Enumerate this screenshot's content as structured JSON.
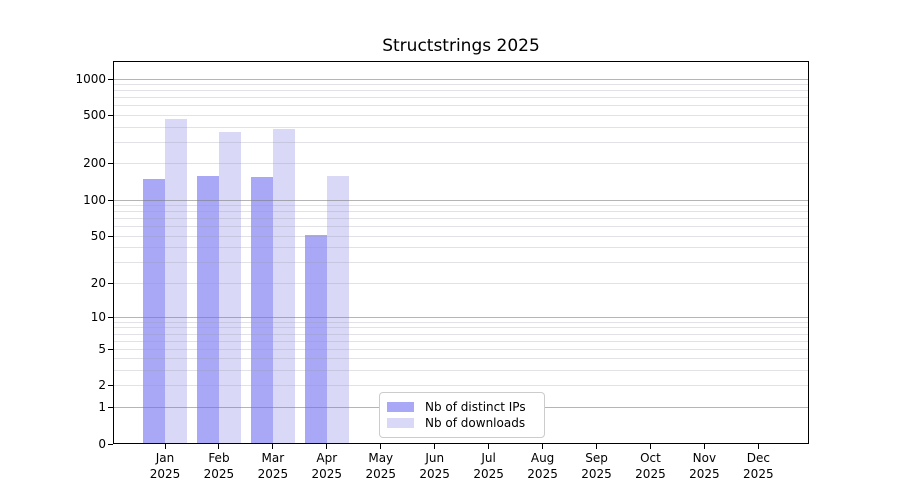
{
  "chart_data": {
    "type": "bar",
    "title": "Structstrings 2025",
    "categories": [
      "Jan",
      "Feb",
      "Mar",
      "Apr",
      "May",
      "Jun",
      "Jul",
      "Aug",
      "Sep",
      "Oct",
      "Nov",
      "Dec"
    ],
    "x_sublabel": "2025",
    "series": [
      {
        "name": "Nb of distinct IPs",
        "color": "#a8a8f7",
        "values": [
          150,
          158,
          156,
          51,
          0,
          0,
          0,
          0,
          0,
          0,
          0,
          0
        ]
      },
      {
        "name": "Nb of downloads",
        "color": "#d9d9f7",
        "values": [
          467,
          368,
          385,
          158,
          0,
          0,
          0,
          0,
          0,
          0,
          0,
          0
        ]
      }
    ],
    "y_axis": {
      "tick_values": [
        0,
        1,
        2,
        5,
        10,
        20,
        50,
        100,
        200,
        500,
        1000
      ],
      "scale": "log10(1+y)",
      "min": 0,
      "max": 1000
    },
    "grid": {
      "shown": true,
      "major_lines": [
        1,
        10,
        100,
        1000
      ],
      "minor_multipliers": [
        2,
        3,
        4,
        5,
        6,
        7,
        8,
        9
      ]
    },
    "legend_position": "inside bottom-center"
  },
  "colors": {
    "background": "#ffffff",
    "spine": "#000000",
    "major_grid": "rgba(120,120,120,0.55)",
    "minor_grid": "rgba(150,150,165,0.28)",
    "legend_border": "#cccccc"
  }
}
